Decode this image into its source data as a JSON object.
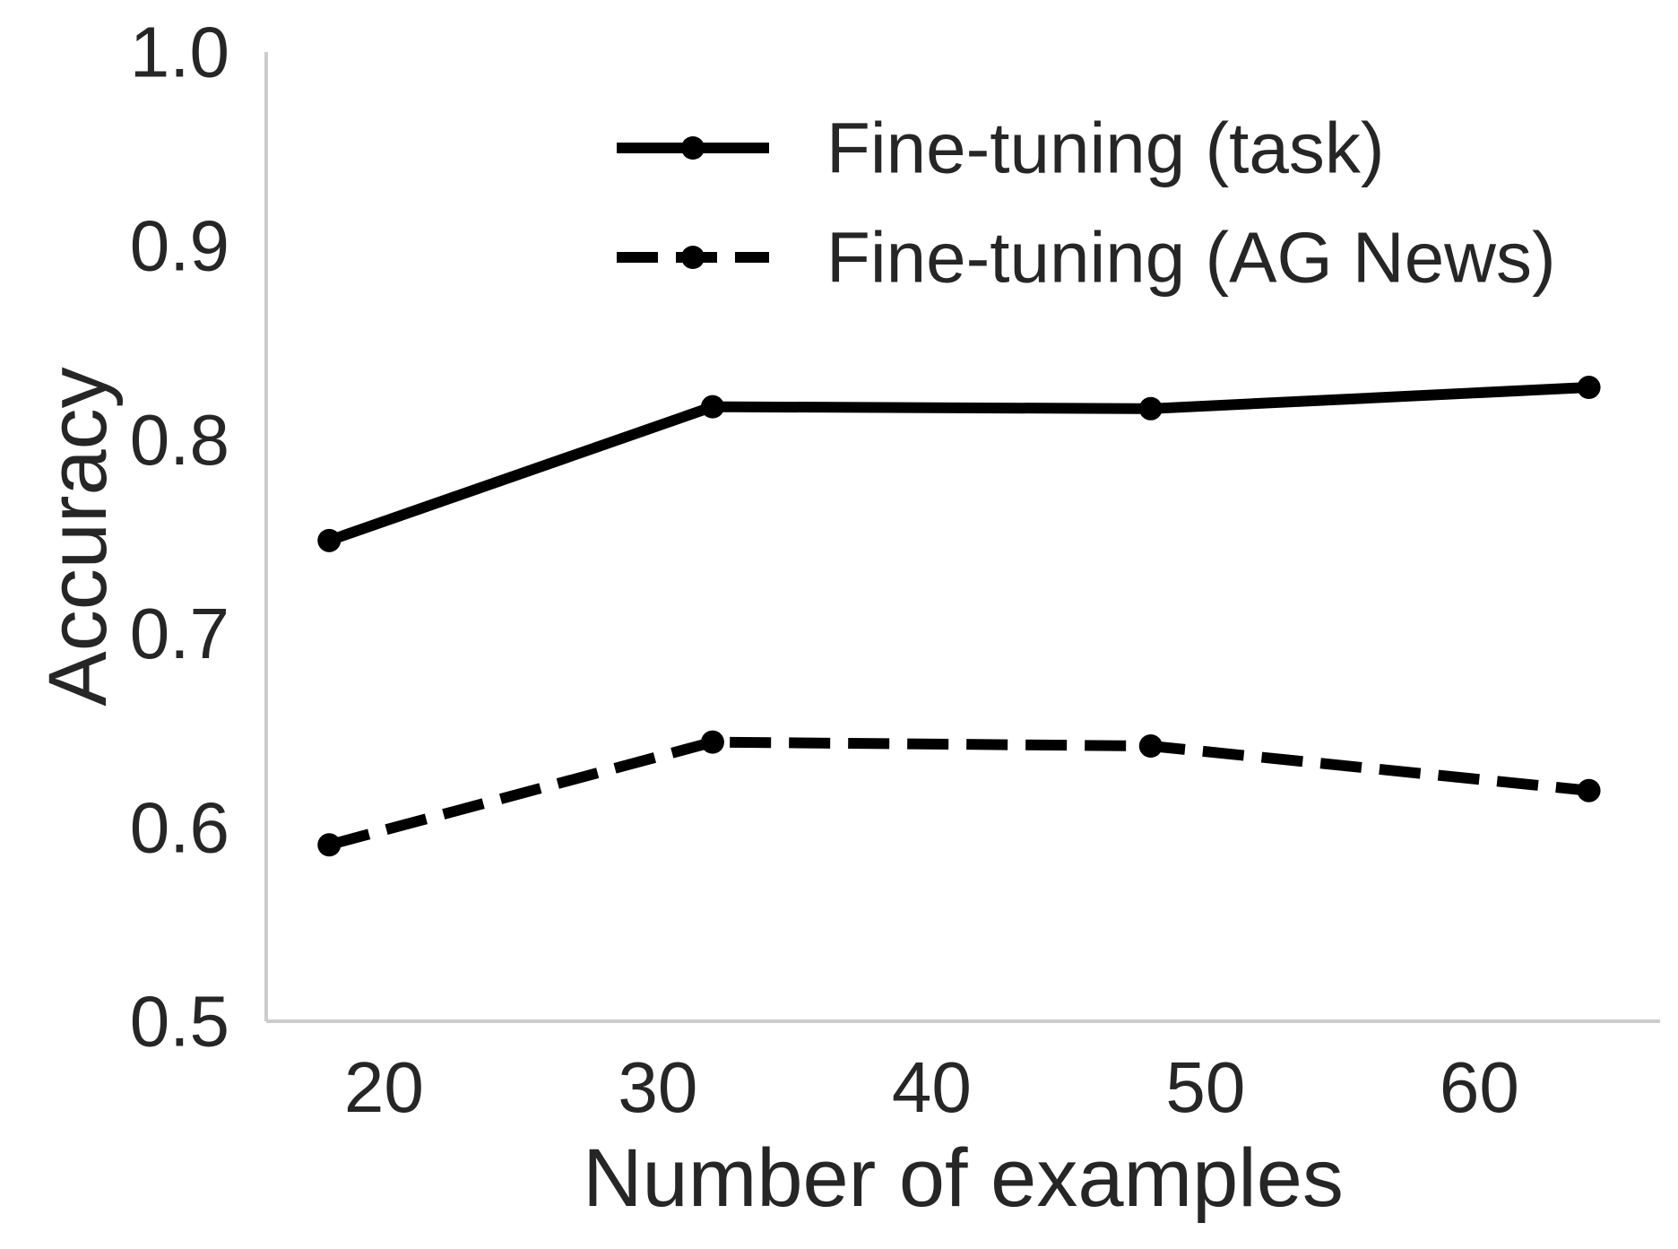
{
  "chart_data": {
    "type": "line",
    "title": "",
    "xlabel": "Number of examples",
    "ylabel": "Accuracy",
    "xlim": [
      15.7,
      66.6
    ],
    "ylim": [
      0.5,
      1.0
    ],
    "xticks": [
      20,
      30,
      40,
      50,
      60
    ],
    "yticks": [
      0.5,
      0.6,
      0.7,
      0.8,
      0.9,
      1.0
    ],
    "xtick_labels": [
      "20",
      "30",
      "40",
      "50",
      "60"
    ],
    "ytick_labels": [
      "0.5",
      "0.6",
      "0.7",
      "0.8",
      "0.9",
      "1.0"
    ],
    "grid": false,
    "legend": {
      "position": "top-right"
    },
    "series": [
      {
        "name": "Fine-tuning (task)",
        "style": "solid",
        "color": "#000000",
        "x": [
          18,
          32,
          48,
          64
        ],
        "y": [
          0.748,
          0.817,
          0.816,
          0.827
        ]
      },
      {
        "name": "Fine-tuning (AG News)",
        "style": "dashed",
        "color": "#000000",
        "x": [
          18,
          32,
          48,
          64
        ],
        "y": [
          0.591,
          0.644,
          0.642,
          0.619
        ]
      }
    ]
  }
}
